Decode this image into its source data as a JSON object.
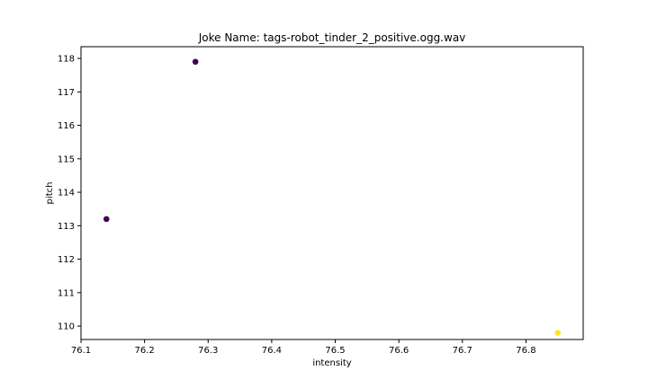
{
  "chart_data": {
    "type": "scatter",
    "title": "Joke Name: tags-robot_tinder_2_positive.ogg.wav",
    "xlabel": "intensity",
    "ylabel": "pitch",
    "xlim": [
      76.1,
      76.89
    ],
    "ylim": [
      109.6,
      118.35
    ],
    "xticks": [
      76.1,
      76.2,
      76.3,
      76.4,
      76.5,
      76.6,
      76.7,
      76.8
    ],
    "xtick_labels": [
      "76.1",
      "76.2",
      "76.3",
      "76.4",
      "76.5",
      "76.6",
      "76.7",
      "76.8"
    ],
    "yticks": [
      110,
      111,
      112,
      113,
      114,
      115,
      116,
      117,
      118
    ],
    "ytick_labels": [
      "110",
      "111",
      "112",
      "113",
      "114",
      "115",
      "116",
      "117",
      "118"
    ],
    "grid": false,
    "points": [
      {
        "x": 76.14,
        "y": 113.2,
        "color": "#440154"
      },
      {
        "x": 76.28,
        "y": 117.9,
        "color": "#440154"
      },
      {
        "x": 76.85,
        "y": 109.8,
        "color": "#fde725"
      }
    ]
  }
}
